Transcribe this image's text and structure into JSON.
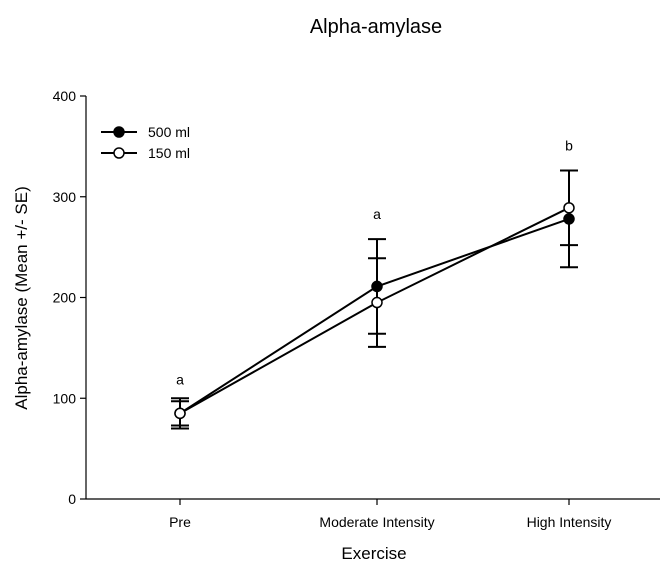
{
  "chart_data": {
    "type": "line",
    "title": "Alpha-amylase",
    "xlabel": "Exercise",
    "ylabel": "Alpha-amylase (Mean +/- SE)",
    "categories": [
      "Pre",
      "Moderate Intensity",
      "High Intensity"
    ],
    "ylim": [
      0,
      400
    ],
    "yticks": [
      0,
      100,
      200,
      300,
      400
    ],
    "grid": false,
    "legend_position": "top-left",
    "series": [
      {
        "name": "500 ml",
        "marker": "filled-circle",
        "values": [
          85,
          211,
          278
        ],
        "error": [
          15,
          47,
          48
        ]
      },
      {
        "name": "150 ml",
        "marker": "open-circle",
        "values": [
          85,
          195,
          289
        ],
        "error": [
          12,
          44,
          37
        ]
      }
    ],
    "annotations": [
      "a",
      "a",
      "b"
    ]
  }
}
